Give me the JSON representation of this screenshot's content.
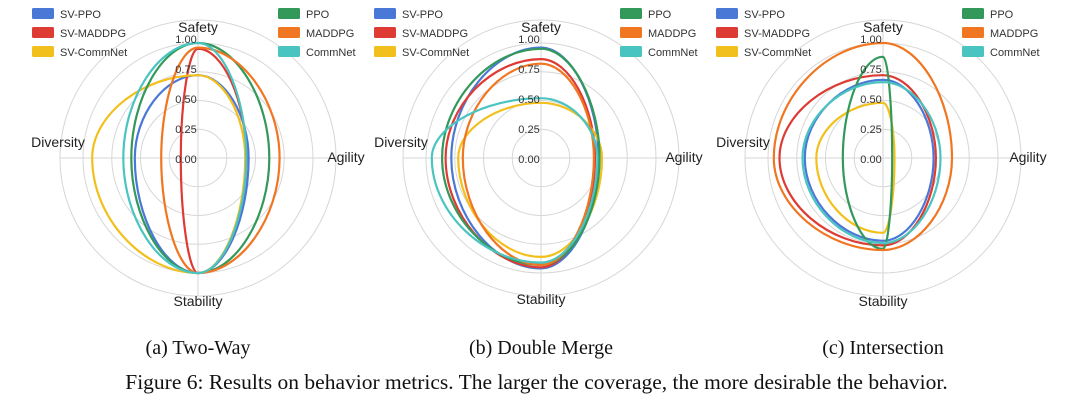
{
  "chart_data": [
    {
      "type": "radar",
      "subcaption": "(a) Two-Way",
      "axes": [
        "Safety",
        "Agility",
        "Stability",
        "Diversity"
      ],
      "ticks": [
        "0.00",
        "0.25",
        "0.50",
        "0.75",
        "1.00"
      ],
      "range": [
        0,
        1
      ],
      "legend": [
        "SV-PPO",
        "SV-MADDPG",
        "SV-CommNet",
        "PPO",
        "MADDPG",
        "CommNet"
      ],
      "series": [
        {
          "name": "SV-PPO",
          "values": [
            0.72,
            0.44,
            1.0,
            0.55
          ]
        },
        {
          "name": "SV-MADDPG",
          "values": [
            0.95,
            0.42,
            1.0,
            0.15
          ]
        },
        {
          "name": "SV-CommNet",
          "values": [
            0.72,
            0.41,
            1.0,
            0.92
          ]
        },
        {
          "name": "PPO",
          "values": [
            1.0,
            0.62,
            1.0,
            0.58
          ]
        },
        {
          "name": "MADDPG",
          "values": [
            0.96,
            0.71,
            1.0,
            0.32
          ]
        },
        {
          "name": "CommNet",
          "values": [
            1.0,
            0.42,
            1.0,
            0.65
          ]
        }
      ]
    },
    {
      "type": "radar",
      "subcaption": "(b) Double Merge",
      "axes": [
        "Safety",
        "Agility",
        "Stability",
        "Diversity"
      ],
      "ticks": [
        "0.00",
        "0.25",
        "0.50",
        "0.75",
        "1.00"
      ],
      "range": [
        0,
        1
      ],
      "legend": [
        "SV-PPO",
        "SV-MADDPG",
        "SV-CommNet",
        "PPO",
        "MADDPG",
        "CommNet"
      ],
      "series": [
        {
          "name": "SV-PPO",
          "values": [
            0.96,
            0.5,
            0.96,
            0.78
          ]
        },
        {
          "name": "SV-MADDPG",
          "values": [
            0.86,
            0.47,
            0.95,
            0.83
          ]
        },
        {
          "name": "SV-CommNet",
          "values": [
            0.48,
            0.53,
            0.86,
            0.72
          ]
        },
        {
          "name": "PPO",
          "values": [
            0.95,
            0.51,
            0.93,
            0.86
          ]
        },
        {
          "name": "MADDPG",
          "values": [
            0.82,
            0.46,
            0.93,
            0.68
          ]
        },
        {
          "name": "CommNet",
          "values": [
            0.52,
            0.49,
            0.91,
            0.95
          ]
        }
      ]
    },
    {
      "type": "radar",
      "subcaption": "(c) Intersection",
      "axes": [
        "Safety",
        "Agility",
        "Stability",
        "Diversity"
      ],
      "ticks": [
        "0.00",
        "0.25",
        "0.50",
        "0.75",
        "1.00"
      ],
      "range": [
        0,
        1
      ],
      "legend": [
        "SV-PPO",
        "SV-MADDPG",
        "SV-CommNet",
        "PPO",
        "MADDPG",
        "CommNet"
      ],
      "series": [
        {
          "name": "SV-PPO",
          "values": [
            0.68,
            0.44,
            0.72,
            0.68
          ]
        },
        {
          "name": "SV-MADDPG",
          "values": [
            0.72,
            0.46,
            0.76,
            0.9
          ]
        },
        {
          "name": "SV-CommNet",
          "values": [
            0.48,
            0.1,
            0.65,
            0.58
          ]
        },
        {
          "name": "PPO",
          "values": [
            0.88,
            0.08,
            0.79,
            0.35
          ]
        },
        {
          "name": "MADDPG",
          "values": [
            1.0,
            0.6,
            0.8,
            0.95
          ]
        },
        {
          "name": "CommNet",
          "values": [
            0.66,
            0.5,
            0.74,
            0.7
          ]
        }
      ]
    }
  ],
  "colors": {
    "SV-PPO": "#4a78d6",
    "SV-MADDPG": "#dd3b34",
    "SV-CommNet": "#f2c01c",
    "PPO": "#33995a",
    "MADDPG": "#f07622",
    "CommNet": "#4ac4c1",
    "grid": "#d6d6d6"
  },
  "figure_caption": "Figure 6: Results on behavior metrics. The larger the coverage, the more desirable the behavior."
}
